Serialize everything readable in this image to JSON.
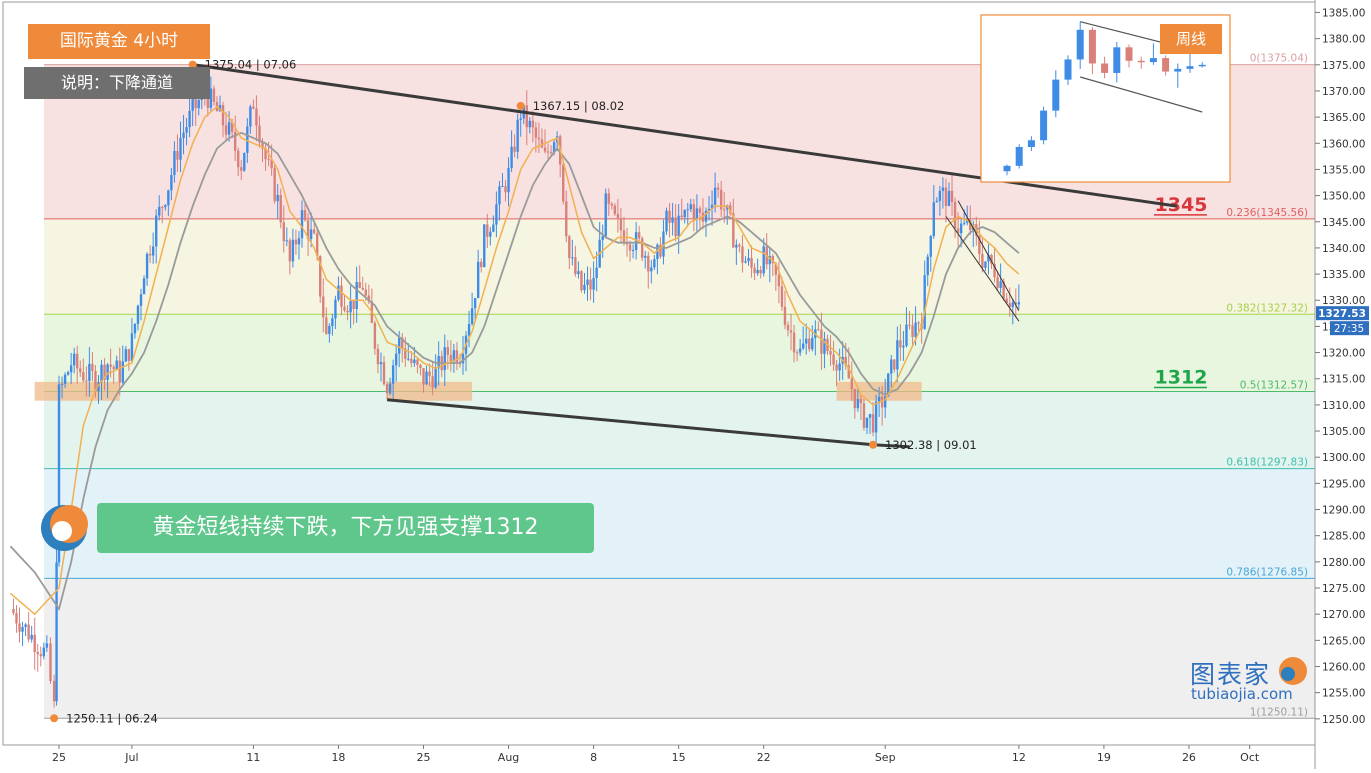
{
  "header": {
    "title": "国际黄金  4小时",
    "note": "说明：下降通道"
  },
  "banner": {
    "text": "黄金短线持续下跌，下方见强支撑1312"
  },
  "inset": {
    "label": "周线"
  },
  "brand": {
    "cn": "图表家",
    "en": "tubiaojia.com"
  },
  "colors": {
    "bull": "#3f8ce6",
    "bear": "#d9807a",
    "ma_fast": "#f2b050",
    "ma_slow": "#9a9a9a",
    "resistance_label": "#d8363a",
    "support_label": "#1fa64a",
    "accent": "#ef8a3a"
  },
  "chart_data": {
    "type": "line",
    "title": "国际黄金  4小时",
    "ylim": [
      1245,
      1387
    ],
    "y_ticks": [
      "1385.00",
      "1380.00",
      "1375.00",
      "1370.00",
      "1365.00",
      "1360.00",
      "1355.00",
      "1350.00",
      "1345.00",
      "1340.00",
      "1335.00",
      "1330.00",
      "1325.00",
      "1320.00",
      "1315.00",
      "1310.00",
      "1305.00",
      "1300.00",
      "1295.00",
      "1290.00",
      "1285.00",
      "1280.00",
      "1275.00",
      "1270.00",
      "1265.00",
      "1260.00",
      "1255.00",
      "1250.00"
    ],
    "x_ticks": [
      {
        "label": "25",
        "day": 0
      },
      {
        "label": "Jul",
        "day": 6
      },
      {
        "label": "11",
        "day": 16
      },
      {
        "label": "18",
        "day": 23
      },
      {
        "label": "25",
        "day": 30
      },
      {
        "label": "Aug",
        "day": 37
      },
      {
        "label": "8",
        "day": 44
      },
      {
        "label": "15",
        "day": 51
      },
      {
        "label": "22",
        "day": 58
      },
      {
        "label": "Sep",
        "day": 68
      },
      {
        "label": "12",
        "day": 79
      },
      {
        "label": "19",
        "day": 86
      },
      {
        "label": "26",
        "day": 93
      },
      {
        "label": "Oct",
        "day": 98
      }
    ],
    "price_path": [
      [
        -4,
        1271
      ],
      [
        -3,
        1268
      ],
      [
        -1,
        1262
      ],
      [
        -0.4,
        1252
      ],
      [
        0,
        1312
      ],
      [
        1,
        1318
      ],
      [
        2,
        1316
      ],
      [
        3,
        1315
      ],
      [
        4,
        1318
      ],
      [
        5,
        1316
      ],
      [
        6,
        1322
      ],
      [
        7,
        1336
      ],
      [
        8,
        1345
      ],
      [
        9,
        1352
      ],
      [
        10,
        1361
      ],
      [
        11,
        1366
      ],
      [
        12,
        1370
      ],
      [
        13,
        1366
      ],
      [
        14,
        1362
      ],
      [
        15,
        1356
      ],
      [
        16,
        1368
      ],
      [
        17,
        1357
      ],
      [
        18,
        1349
      ],
      [
        19,
        1337
      ],
      [
        20,
        1346
      ],
      [
        21,
        1341
      ],
      [
        22,
        1323
      ],
      [
        23,
        1332
      ],
      [
        24,
        1329
      ],
      [
        25,
        1333
      ],
      [
        26,
        1322
      ],
      [
        27,
        1314
      ],
      [
        28,
        1322
      ],
      [
        29,
        1318
      ],
      [
        30,
        1315
      ],
      [
        31,
        1316
      ],
      [
        32,
        1320
      ],
      [
        33,
        1320
      ],
      [
        34,
        1329
      ],
      [
        35,
        1342
      ],
      [
        36,
        1348
      ],
      [
        37,
        1354
      ],
      [
        38,
        1366
      ],
      [
        39,
        1362
      ],
      [
        40,
        1357
      ],
      [
        41,
        1363
      ],
      [
        42,
        1338
      ],
      [
        43,
        1332
      ],
      [
        44,
        1333
      ],
      [
        45,
        1348
      ],
      [
        46,
        1344
      ],
      [
        47,
        1342
      ],
      [
        48,
        1340
      ],
      [
        49,
        1336
      ],
      [
        50,
        1345
      ],
      [
        51,
        1344
      ],
      [
        52,
        1348
      ],
      [
        53,
        1345
      ],
      [
        54,
        1352
      ],
      [
        55,
        1346
      ],
      [
        56,
        1339
      ],
      [
        57,
        1336
      ],
      [
        58,
        1338
      ],
      [
        59,
        1334
      ],
      [
        60,
        1325
      ],
      [
        61,
        1320
      ],
      [
        62,
        1324
      ],
      [
        63,
        1321
      ],
      [
        64,
        1319
      ],
      [
        65,
        1315
      ],
      [
        66,
        1308
      ],
      [
        67,
        1307
      ],
      [
        68,
        1312
      ],
      [
        69,
        1321
      ],
      [
        70,
        1324
      ],
      [
        71,
        1327
      ],
      [
        72,
        1350
      ],
      [
        73,
        1350
      ],
      [
        74,
        1344
      ],
      [
        75,
        1344
      ],
      [
        76,
        1338
      ],
      [
        77,
        1336
      ],
      [
        78,
        1331
      ],
      [
        79,
        1328
      ]
    ],
    "ma_fast_path": [
      [
        -4,
        1274
      ],
      [
        -2,
        1270
      ],
      [
        0,
        1275
      ],
      [
        1,
        1290
      ],
      [
        2,
        1306
      ],
      [
        3,
        1313
      ],
      [
        4,
        1316
      ],
      [
        5,
        1317
      ],
      [
        6,
        1318
      ],
      [
        7,
        1326
      ],
      [
        8,
        1335
      ],
      [
        9,
        1344
      ],
      [
        10,
        1353
      ],
      [
        11,
        1360
      ],
      [
        12,
        1365
      ],
      [
        13,
        1367
      ],
      [
        14,
        1365
      ],
      [
        15,
        1361
      ],
      [
        16,
        1360
      ],
      [
        17,
        1359
      ],
      [
        18,
        1355
      ],
      [
        19,
        1347
      ],
      [
        20,
        1344
      ],
      [
        21,
        1340
      ],
      [
        22,
        1334
      ],
      [
        23,
        1332
      ],
      [
        24,
        1330
      ],
      [
        25,
        1330
      ],
      [
        26,
        1327
      ],
      [
        27,
        1322
      ],
      [
        28,
        1321
      ],
      [
        29,
        1320
      ],
      [
        30,
        1318
      ],
      [
        31,
        1317
      ],
      [
        32,
        1318
      ],
      [
        33,
        1319
      ],
      [
        34,
        1324
      ],
      [
        35,
        1332
      ],
      [
        36,
        1340
      ],
      [
        37,
        1347
      ],
      [
        38,
        1355
      ],
      [
        39,
        1359
      ],
      [
        40,
        1360
      ],
      [
        41,
        1361
      ],
      [
        42,
        1352
      ],
      [
        43,
        1343
      ],
      [
        44,
        1338
      ],
      [
        45,
        1340
      ],
      [
        46,
        1342
      ],
      [
        47,
        1342
      ],
      [
        48,
        1341
      ],
      [
        49,
        1339
      ],
      [
        50,
        1341
      ],
      [
        51,
        1342
      ],
      [
        52,
        1345
      ],
      [
        53,
        1346
      ],
      [
        54,
        1348
      ],
      [
        55,
        1348
      ],
      [
        56,
        1344
      ],
      [
        57,
        1340
      ],
      [
        58,
        1339
      ],
      [
        59,
        1337
      ],
      [
        60,
        1331
      ],
      [
        61,
        1326
      ],
      [
        62,
        1324
      ],
      [
        63,
        1322
      ],
      [
        64,
        1320
      ],
      [
        65,
        1317
      ],
      [
        66,
        1312
      ],
      [
        67,
        1310
      ],
      [
        68,
        1311
      ],
      [
        69,
        1315
      ],
      [
        70,
        1320
      ],
      [
        71,
        1325
      ],
      [
        72,
        1336
      ],
      [
        73,
        1344
      ],
      [
        74,
        1346
      ],
      [
        75,
        1345
      ],
      [
        76,
        1342
      ],
      [
        77,
        1340
      ],
      [
        78,
        1337
      ],
      [
        79,
        1335
      ]
    ],
    "ma_slow_path": [
      [
        -4,
        1283
      ],
      [
        -2,
        1278
      ],
      [
        0,
        1271
      ],
      [
        1,
        1280
      ],
      [
        2,
        1292
      ],
      [
        3,
        1302
      ],
      [
        4,
        1309
      ],
      [
        5,
        1313
      ],
      [
        6,
        1316
      ],
      [
        7,
        1320
      ],
      [
        8,
        1326
      ],
      [
        9,
        1333
      ],
      [
        10,
        1341
      ],
      [
        11,
        1348
      ],
      [
        12,
        1354
      ],
      [
        13,
        1359
      ],
      [
        14,
        1361
      ],
      [
        15,
        1362
      ],
      [
        16,
        1361
      ],
      [
        17,
        1360
      ],
      [
        18,
        1358
      ],
      [
        19,
        1354
      ],
      [
        20,
        1350
      ],
      [
        21,
        1345
      ],
      [
        22,
        1340
      ],
      [
        23,
        1336
      ],
      [
        24,
        1333
      ],
      [
        25,
        1331
      ],
      [
        26,
        1329
      ],
      [
        27,
        1325
      ],
      [
        28,
        1323
      ],
      [
        29,
        1321
      ],
      [
        30,
        1319
      ],
      [
        31,
        1318
      ],
      [
        32,
        1318
      ],
      [
        33,
        1318
      ],
      [
        34,
        1320
      ],
      [
        35,
        1325
      ],
      [
        36,
        1332
      ],
      [
        37,
        1339
      ],
      [
        38,
        1346
      ],
      [
        39,
        1352
      ],
      [
        40,
        1356
      ],
      [
        41,
        1359
      ],
      [
        42,
        1356
      ],
      [
        43,
        1350
      ],
      [
        44,
        1344
      ],
      [
        45,
        1342
      ],
      [
        46,
        1341
      ],
      [
        47,
        1341
      ],
      [
        48,
        1341
      ],
      [
        49,
        1340
      ],
      [
        50,
        1340
      ],
      [
        51,
        1341
      ],
      [
        52,
        1342
      ],
      [
        53,
        1344
      ],
      [
        54,
        1345
      ],
      [
        55,
        1346
      ],
      [
        56,
        1345
      ],
      [
        57,
        1343
      ],
      [
        58,
        1341
      ],
      [
        59,
        1339
      ],
      [
        60,
        1335
      ],
      [
        61,
        1331
      ],
      [
        62,
        1328
      ],
      [
        63,
        1325
      ],
      [
        64,
        1323
      ],
      [
        65,
        1320
      ],
      [
        66,
        1316
      ],
      [
        67,
        1313
      ],
      [
        68,
        1312
      ],
      [
        69,
        1313
      ],
      [
        70,
        1316
      ],
      [
        71,
        1320
      ],
      [
        72,
        1327
      ],
      [
        73,
        1335
      ],
      [
        74,
        1340
      ],
      [
        75,
        1343
      ],
      [
        76,
        1344
      ],
      [
        77,
        1343
      ],
      [
        78,
        1341
      ],
      [
        79,
        1339
      ]
    ],
    "fib_levels": [
      {
        "label": "0(1375.04)",
        "value": 1375.04,
        "color": "#d9a0a0",
        "zone_to": 1345.56,
        "zone_color": "#f8e1e1"
      },
      {
        "label": "0.236(1345.56)",
        "value": 1345.56,
        "color": "#e06060",
        "zone_to": 1327.32,
        "zone_color": "#f5f5e2"
      },
      {
        "label": "0.382(1327.32)",
        "value": 1327.32,
        "color": "#a6d24a",
        "zone_to": 1312.57,
        "zone_color": "#e9f6df"
      },
      {
        "label": "0.5(1312.57)",
        "value": 1312.57,
        "color": "#4cbb6b",
        "zone_to": 1297.83,
        "zone_color": "#e2f4ed"
      },
      {
        "label": "0.618(1297.83)",
        "value": 1297.83,
        "color": "#3fc0b0",
        "zone_to": 1276.85,
        "zone_color": "#e3f1f8"
      },
      {
        "label": "0.786(1276.85)",
        "value": 1276.85,
        "color": "#4aa8d8",
        "zone_to": 1250.11,
        "zone_color": "#efefef"
      },
      {
        "label": "1(1250.11)",
        "value": 1250.11,
        "color": "#9e9e9e"
      }
    ],
    "pivots": [
      {
        "label": "1375.04 | 07.06",
        "day": 11,
        "value": 1375.04
      },
      {
        "label": "1367.15 | 08.02",
        "day": 38,
        "value": 1367.15
      },
      {
        "label": "1302.38 | 09.01",
        "day": 67,
        "value": 1302.38
      },
      {
        "label": "1250.11 | 06.24",
        "day": -0.4,
        "value": 1250.11
      }
    ],
    "key_levels": [
      {
        "label": "1345",
        "value": 1345.56,
        "role": "resistance"
      },
      {
        "label": "1312",
        "value": 1312.57,
        "role": "support"
      }
    ],
    "channel": {
      "upper": [
        [
          11,
          1375.04
        ],
        [
          92,
          1348
        ]
      ],
      "lower": [
        [
          27,
          1311
        ],
        [
          67,
          1302.38
        ],
        [
          70,
          1302
        ]
      ]
    },
    "support_boxes": [
      {
        "day_from": -2,
        "day_to": 5,
        "low": 1310.8,
        "high": 1314.4
      },
      {
        "day_from": 27,
        "day_to": 34,
        "low": 1310.8,
        "high": 1314.4
      },
      {
        "day_from": 64,
        "day_to": 71,
        "low": 1310.8,
        "high": 1314.4
      }
    ],
    "wedge": {
      "top": [
        [
          74,
          1349
        ],
        [
          79,
          1328
        ]
      ],
      "bottom": [
        [
          73,
          1346
        ],
        [
          79,
          1326
        ]
      ]
    },
    "current_price": {
      "label": "1327.53",
      "value": 1327.53,
      "timer": "27:35"
    },
    "inset_weekly": {
      "candles": [
        {
          "o": 1270,
          "h": 1275,
          "l": 1267,
          "c": 1274
        },
        {
          "o": 1274,
          "h": 1290,
          "l": 1272,
          "c": 1288
        },
        {
          "o": 1288,
          "h": 1296,
          "l": 1285,
          "c": 1293
        },
        {
          "o": 1293,
          "h": 1318,
          "l": 1290,
          "c": 1315
        },
        {
          "o": 1315,
          "h": 1345,
          "l": 1310,
          "c": 1338
        },
        {
          "o": 1338,
          "h": 1356,
          "l": 1334,
          "c": 1353
        },
        {
          "o": 1353,
          "h": 1381,
          "l": 1346,
          "c": 1375
        },
        {
          "o": 1375,
          "h": 1377,
          "l": 1342,
          "c": 1350
        },
        {
          "o": 1350,
          "h": 1355,
          "l": 1339,
          "c": 1343
        },
        {
          "o": 1343,
          "h": 1366,
          "l": 1336,
          "c": 1362
        },
        {
          "o": 1362,
          "h": 1364,
          "l": 1347,
          "c": 1352
        },
        {
          "o": 1352,
          "h": 1355,
          "l": 1346,
          "c": 1351
        },
        {
          "o": 1351,
          "h": 1365,
          "l": 1349,
          "c": 1354
        },
        {
          "o": 1354,
          "h": 1356,
          "l": 1341,
          "c": 1344
        },
        {
          "o": 1344,
          "h": 1350,
          "l": 1332,
          "c": 1346
        },
        {
          "o": 1346,
          "h": 1363,
          "l": 1343,
          "c": 1348
        },
        {
          "o": 1348,
          "h": 1351,
          "l": 1347,
          "c": 1349
        }
      ],
      "channel_top": [
        [
          6,
          1381
        ],
        [
          16,
          1358
        ]
      ],
      "channel_bottom": [
        [
          6,
          1340
        ],
        [
          16,
          1314
        ]
      ],
      "ylim": [
        1262,
        1386
      ]
    }
  }
}
